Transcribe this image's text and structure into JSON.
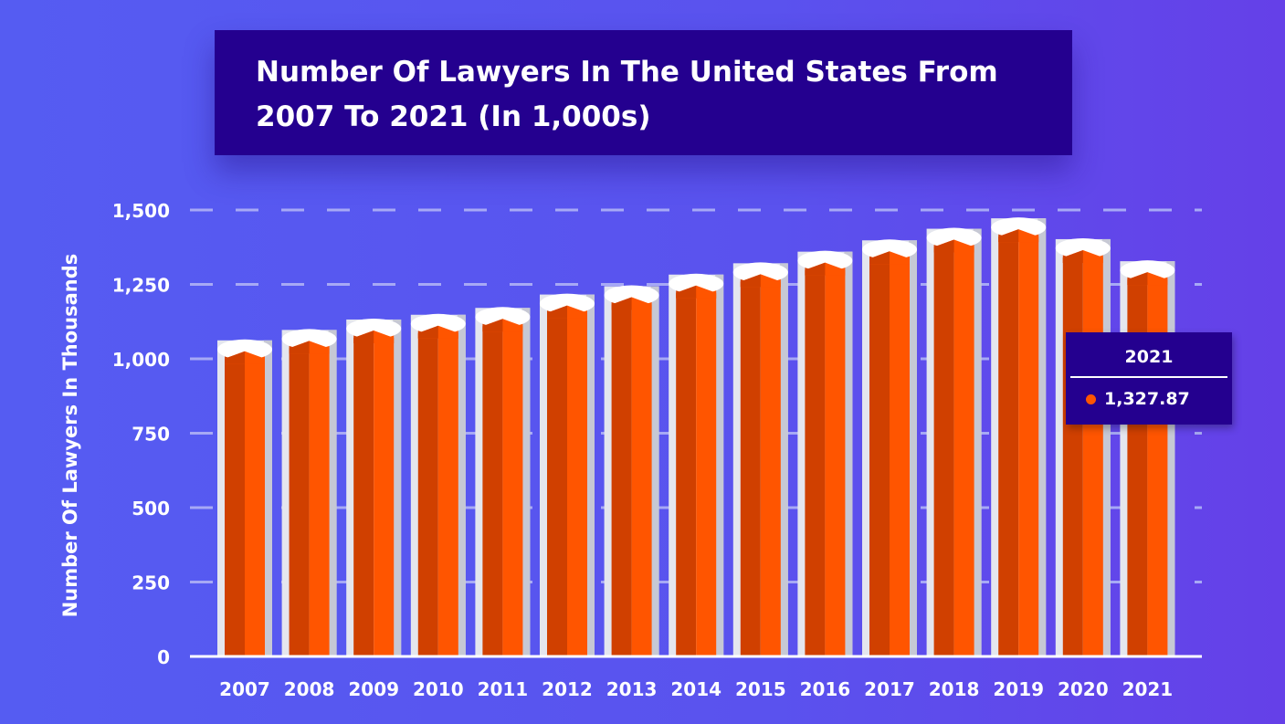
{
  "colors": {
    "bar_front": "#ff5500",
    "bar_shade": "#d04000",
    "cap": "#ffffff",
    "title_bg": "#24008f",
    "grid": "#a7a9f5"
  },
  "chart_data": {
    "type": "bar",
    "title": "Number Of Lawyers In The United States From 2007 To 2021 (In 1,000s)",
    "xlabel": "",
    "ylabel": "Number Of Lawyers In Thousands",
    "categories": [
      "2007",
      "2008",
      "2009",
      "2010",
      "2011",
      "2012",
      "2013",
      "2014",
      "2015",
      "2016",
      "2017",
      "2018",
      "2019",
      "2020",
      "2021"
    ],
    "values": [
      1062,
      1097,
      1132,
      1148,
      1171,
      1216,
      1244,
      1283,
      1321,
      1360,
      1398,
      1437,
      1472,
      1402,
      1327.87
    ],
    "ylim": [
      0,
      1500
    ],
    "yticks": [
      0,
      250,
      500,
      750,
      1000,
      1250,
      1500
    ],
    "ytick_labels": [
      "0",
      "250",
      "500",
      "750",
      "1,000",
      "1,250",
      "1,500"
    ],
    "grid": "dashed horizontal",
    "tooltip": {
      "category": "2021",
      "value_label": "1,327.87"
    }
  }
}
